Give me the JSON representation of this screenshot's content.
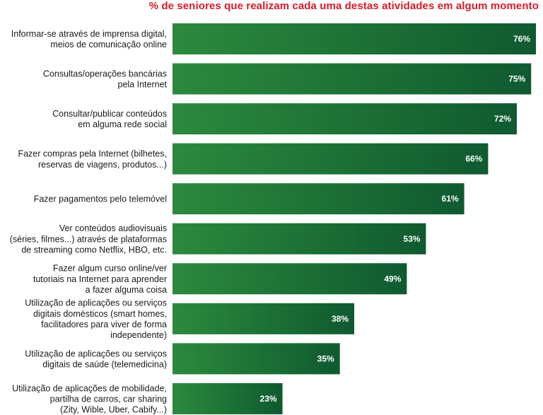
{
  "chart_data": {
    "type": "bar",
    "orientation": "horizontal",
    "title": "% de seniores que realizam cada uma destas atividades em algum momento",
    "xlabel": "",
    "ylabel": "",
    "xlim": [
      0,
      100
    ],
    "grid": false,
    "legend": null,
    "categories": [
      [
        "Informar-se através de imprensa digital,",
        "meios de comunicação online"
      ],
      [
        "Consultas/operações bancárias",
        "pela Internet"
      ],
      [
        "Consultar/publicar conteúdos",
        "em alguma rede social"
      ],
      [
        "Fazer compras pela Internet (bilhetes,",
        "reservas de viagens, produtos...)"
      ],
      [
        "Fazer pagamentos pelo telemóvel"
      ],
      [
        "Ver conteúdos audiovisuais",
        "(séries, filmes...) através de plataformas",
        "de streaming como Netflix, HBO, etc."
      ],
      [
        "Fazer algum curso online/ver",
        "tutoriais na Internet para aprender",
        "a fazer alguma coisa"
      ],
      [
        "Utilização de aplicações ou serviços",
        "digitais domésticos (smart homes,",
        "facilitadores para viver de forma",
        "independente)"
      ],
      [
        "Utilização de aplicações ou serviços",
        "digitais de saúde (telemedicina)"
      ],
      [
        "Utilização de aplicações de mobilidade,",
        "partilha de carros, car sharing",
        "(Zity, Wible, Uber, Cabify...)"
      ]
    ],
    "values": [
      76,
      75,
      72,
      66,
      61,
      53,
      49,
      38,
      35,
      23
    ],
    "value_labels": [
      "76%",
      "75%",
      "72%",
      "66%",
      "61%",
      "53%",
      "49%",
      "38%",
      "35%",
      "23%"
    ],
    "colors": {
      "title": "#d91a2a",
      "bar_start": "#2b8a3c",
      "bar_end": "#0f5a30",
      "label": "#1a1a1a",
      "value_text": "#ffffff"
    }
  }
}
